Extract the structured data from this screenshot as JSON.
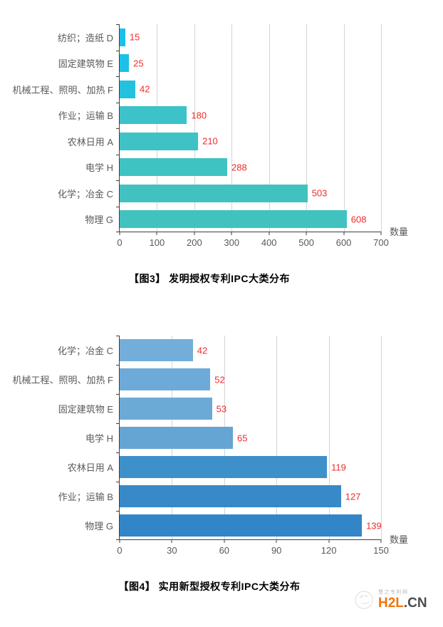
{
  "chart_data": [
    {
      "type": "bar",
      "orientation": "horizontal",
      "title": "【图3】 发明授权专利IPC大类分布",
      "xlabel": "数量",
      "categories": [
        "纺织；造纸 D",
        "固定建筑物 E",
        "机械工程、照明、加热 F",
        "作业；运输 B",
        "农林日用 A",
        "电学 H",
        "化学；冶金 C",
        "物理 G"
      ],
      "values": [
        15,
        25,
        42,
        180,
        210,
        288,
        503,
        608
      ],
      "xlim": [
        0,
        700
      ],
      "xticks": [
        0,
        100,
        200,
        300,
        400,
        500,
        600,
        700
      ],
      "grid": true,
      "legend": "none",
      "bar_colors": [
        "#19c0eb",
        "#1dc0e7",
        "#24c1df",
        "#3cc2c8",
        "#3ec2c5",
        "#3fc2c2",
        "#41c2c0",
        "#41c2bf"
      ],
      "value_label_color": "#f42a2a"
    },
    {
      "type": "bar",
      "orientation": "horizontal",
      "title": "【图4】 实用新型授权专利IPC大类分布",
      "xlabel": "数量",
      "categories": [
        "化学；冶金 C",
        "机械工程、照明、加热 F",
        "固定建筑物 E",
        "电学 H",
        "农林日用 A",
        "作业；运输 B",
        "物理 G"
      ],
      "values": [
        42,
        52,
        53,
        65,
        119,
        127,
        139
      ],
      "xlim": [
        0,
        150
      ],
      "xticks": [
        0,
        30,
        60,
        90,
        120,
        150
      ],
      "grid": true,
      "legend": "none",
      "bar_colors": [
        "#73add9",
        "#6daad7",
        "#6ba9d6",
        "#64a5d3",
        "#3e90cb",
        "#3889c8",
        "#3285c6"
      ],
      "value_label_color": "#f42a2a"
    }
  ],
  "styles": {
    "axis_color": "#3f3f3f",
    "grid_color": "#d4d4d4",
    "label_color": "#595959",
    "title_color": "#000000"
  },
  "watermark": {
    "tagline": "慧之专利网",
    "brand_main": "H2L",
    "brand_suffix": ".CN",
    "brand_main_color": "#f0750f",
    "brand_suffix_color": "#4d4d4d"
  }
}
